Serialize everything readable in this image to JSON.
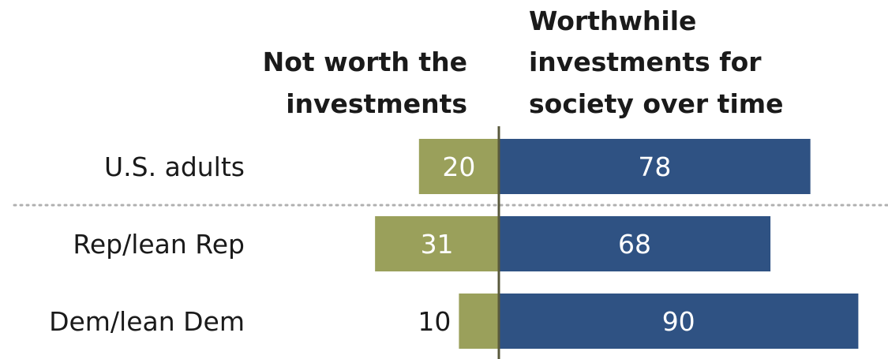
{
  "chart_data": {
    "type": "bar",
    "orientation": "horizontal-diverging",
    "categories": [
      "U.S. adults",
      "Rep/lean Rep",
      "Dem/lean Dem"
    ],
    "series": [
      {
        "name": "Not worth the investments",
        "values": [
          20,
          31,
          10
        ],
        "color": "#9aa05b",
        "direction": "left"
      },
      {
        "name": "Worthwhile investments for society over time",
        "values": [
          78,
          68,
          90
        ],
        "color": "#2f5283",
        "direction": "right"
      }
    ],
    "column_headers": {
      "left": [
        "Not worth the",
        "investments"
      ],
      "right": [
        "Worthwhile",
        "investments for",
        "society over time"
      ]
    },
    "value_label_color_inside": "#ffffff",
    "value_label_color_outside": "#1a1a1a",
    "axis_color": "#5a5a3c",
    "divider_after_category": 0,
    "divider_style": "dotted"
  }
}
